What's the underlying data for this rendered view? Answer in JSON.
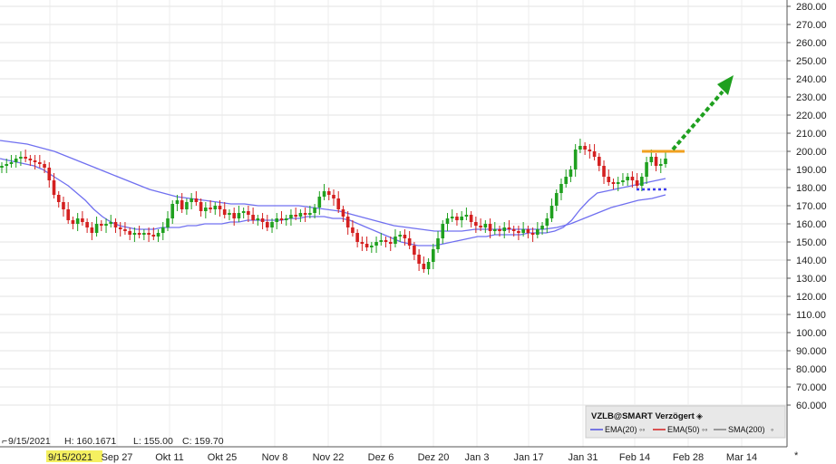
{
  "chart_data": {
    "type": "candlestick",
    "title": "",
    "xlabel": "",
    "ylabel": "",
    "ylim": [
      55,
      285
    ],
    "yticks": [
      "280.00",
      "270.00",
      "260.00",
      "250.00",
      "240.00",
      "230.00",
      "220.00",
      "210.00",
      "200.00",
      "190.00",
      "180.00",
      "170.00",
      "160.00",
      "150.00",
      "140.00",
      "130.00",
      "120.00",
      "110.00",
      "100.00",
      "90.000",
      "80.000",
      "70.000",
      "60.000"
    ],
    "x_tick_labels": [
      "9/15/2021",
      "Sep 27",
      "Okt 11",
      "Okt 25",
      "Nov 8",
      "Nov 22",
      "Dez 6",
      "Dez 20",
      "Jan 3",
      "Jan 17",
      "Jan 31",
      "Feb 14",
      "Feb 28",
      "Mar 14"
    ],
    "highlighted_x_label": "9/15/2021",
    "grid": true,
    "colors": {
      "up": "#1fa01f",
      "down": "#d42020",
      "ema": "#7070f0",
      "resistance": "#f0a020",
      "support": "#3a3af0",
      "arrow": "#1fa01f",
      "highlight": "#f5f060"
    },
    "info_bar": {
      "date": "9/15/2021",
      "high": "H: 160.1671",
      "low": "L: 155.00",
      "close": "C: 159.70"
    },
    "legend": {
      "title": "VZLB@SMART Verzögert",
      "items": [
        {
          "name": "EMA(20)",
          "color": "#5050e0"
        },
        {
          "name": "EMA(50)",
          "color": "#d42020"
        },
        {
          "name": "SMA(200)",
          "color": "#808080"
        }
      ]
    },
    "closes": [
      192,
      193,
      194,
      196,
      197,
      196,
      195,
      194,
      193,
      191,
      184,
      176,
      172,
      168,
      162,
      160,
      163,
      161,
      158,
      155,
      160,
      159,
      160,
      161,
      158,
      157,
      156,
      154,
      155,
      154,
      155,
      154,
      153,
      155,
      158,
      163,
      171,
      173,
      168,
      172,
      174,
      172,
      167,
      169,
      168,
      170,
      168,
      165,
      166,
      163,
      166,
      167,
      165,
      162,
      163,
      161,
      158,
      161,
      163,
      162,
      163,
      165,
      164,
      166,
      165,
      166,
      169,
      175,
      178,
      176,
      174,
      168,
      164,
      158,
      155,
      150,
      149,
      147,
      148,
      150,
      151,
      150,
      149,
      153,
      154,
      152,
      148,
      143,
      138,
      135,
      139,
      146,
      152,
      160,
      163,
      164,
      162,
      164,
      165,
      161,
      159,
      158,
      160,
      156,
      157,
      156,
      158,
      157,
      156,
      155,
      157,
      155,
      154,
      157,
      159,
      163,
      170,
      177,
      182,
      186,
      190,
      201,
      203,
      201,
      200,
      197,
      192,
      186,
      183,
      182,
      183,
      184,
      186,
      184,
      181,
      186,
      194,
      197,
      192,
      193,
      196
    ],
    "ohlc_range": {
      "first_x": "9/15/2021",
      "last_x": "Feb 24"
    },
    "ema20": [
      196,
      195,
      194,
      193,
      192,
      190,
      187,
      184,
      181,
      177,
      173,
      168,
      164,
      161,
      159,
      158,
      157,
      157,
      157,
      158,
      158,
      158,
      159,
      159,
      160,
      160,
      160,
      161,
      161,
      162,
      162,
      162,
      162,
      162,
      163,
      163,
      164,
      164,
      164,
      163,
      163,
      162,
      160,
      158,
      156,
      154,
      152,
      150,
      149,
      148,
      148,
      148,
      149,
      150,
      151,
      152,
      153,
      153,
      154,
      154,
      154,
      154,
      155,
      155,
      155,
      156,
      158,
      162,
      168,
      173,
      177,
      178,
      179,
      180,
      181,
      182,
      183,
      184,
      185
    ],
    "ema50": [
      206,
      205,
      204,
      202,
      200,
      197,
      194,
      191,
      188,
      185,
      182,
      179,
      177,
      175,
      174,
      173,
      172,
      171,
      171,
      170,
      170,
      170,
      170,
      169,
      168,
      167,
      165,
      163,
      161,
      159,
      158,
      157,
      156,
      156,
      156,
      157,
      157,
      157,
      157,
      157,
      157,
      158,
      160,
      163,
      166,
      169,
      171,
      173,
      174,
      176
    ],
    "resistance_level": 200,
    "support_level": 179,
    "arrow_target": 237
  }
}
